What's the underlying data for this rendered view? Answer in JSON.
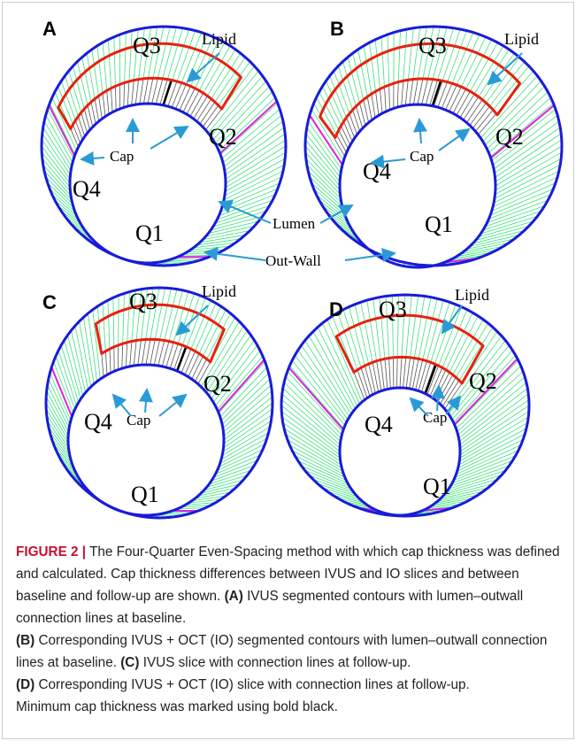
{
  "figure": {
    "panels": [
      {
        "letter": "A",
        "q1": "Q1",
        "q2": "Q2",
        "q3": "Q3",
        "q4": "Q4",
        "lipid": "Lipid",
        "cap": "Cap"
      },
      {
        "letter": "B",
        "q1": "Q1",
        "q2": "Q2",
        "q3": "Q3",
        "q4": "Q4",
        "lipid": "Lipid",
        "cap": "Cap"
      },
      {
        "letter": "C",
        "q1": "Q1",
        "q2": "Q2",
        "q3": "Q3",
        "q4": "Q4",
        "lipid": "Lipid",
        "cap": "Cap"
      },
      {
        "letter": "D",
        "q1": "Q1",
        "q2": "Q2",
        "q3": "Q3",
        "q4": "Q4",
        "lipid": "Lipid",
        "cap": "Cap"
      }
    ],
    "lumen": "Lumen",
    "out_wall": "Out-Wall",
    "caption": {
      "label": "FIGURE 2 |",
      "intro": "The Four-Quarter Even-Spacing method with which cap thickness was defined and calculated. Cap thickness differences between IVUS and IO slices and between baseline and follow-up are shown.",
      "items": [
        {
          "tag": "(A)",
          "text": "IVUS segmented contours with lumen–outwall connection lines at baseline."
        },
        {
          "tag": "(B)",
          "text": "Corresponding IVUS + OCT (IO) segmented contours with lumen–outwall connection lines at baseline."
        },
        {
          "tag": "(C)",
          "text": "IVUS slice with connection lines at follow-up."
        },
        {
          "tag": "(D)",
          "text": "Corresponding IVUS + OCT (IO) slice with connection lines at follow-up."
        }
      ],
      "closing": "Minimum cap thickness was marked using bold black."
    }
  }
}
